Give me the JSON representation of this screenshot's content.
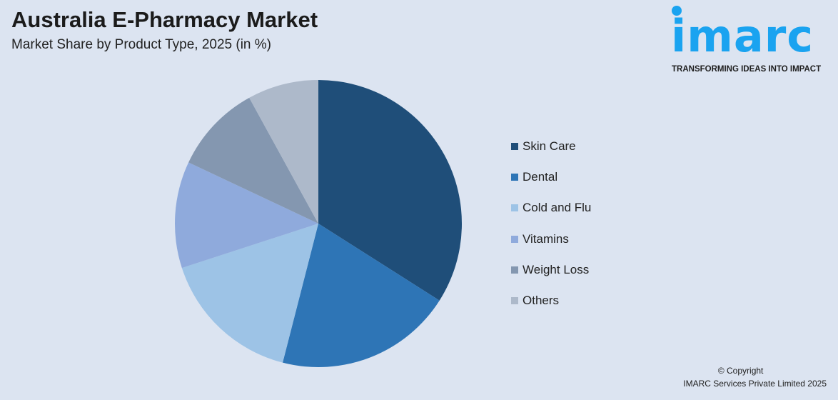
{
  "header": {
    "title": "Australia E-Pharmacy Market",
    "subtitle": "Market Share by Product Type, 2025 (in %)"
  },
  "logo": {
    "text": "imarc",
    "tagline": "TRANSFORMING IDEAS INTO IMPACT",
    "color": "#1aa3f0"
  },
  "chart_data": {
    "type": "pie",
    "title": "Australia E-Pharmacy Market",
    "subtitle": "Market Share by Product Type, 2025 (in %)",
    "categories": [
      "Skin Care",
      "Dental",
      "Cold and Flu",
      "Vitamins",
      "Weight Loss",
      "Others"
    ],
    "values": [
      34,
      20,
      16,
      12,
      10,
      8
    ],
    "colors": [
      "#1f4e79",
      "#2e75b6",
      "#9dc3e6",
      "#8faadc",
      "#8497b0",
      "#adb9ca"
    ],
    "start": "12 o'clock, clockwise",
    "legend": "right"
  },
  "footer": {
    "copyright": "© Copyright",
    "company": "IMARC Services Private Limited 2025"
  }
}
